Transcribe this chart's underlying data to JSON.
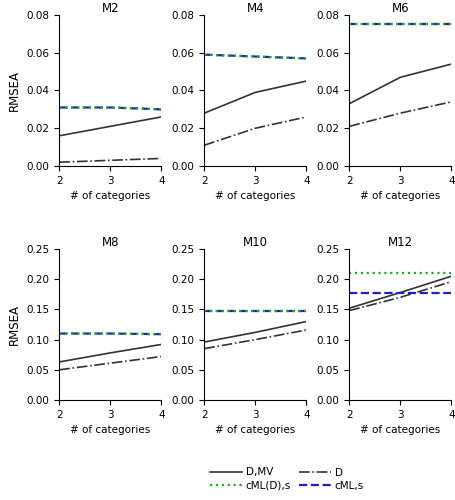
{
  "models": [
    "M2",
    "M4",
    "M6",
    "M8",
    "M10",
    "M12"
  ],
  "x": [
    2,
    3,
    4
  ],
  "upper_ylim": [
    0.0,
    0.08
  ],
  "lower_ylim": [
    0.0,
    0.25
  ],
  "upper_yticks": [
    0.0,
    0.02,
    0.04,
    0.06,
    0.08
  ],
  "lower_yticks": [
    0.0,
    0.05,
    0.1,
    0.15,
    0.2,
    0.25
  ],
  "plots": {
    "M2": {
      "D_MV": [
        0.016,
        0.021,
        0.026
      ],
      "D": [
        0.002,
        0.003,
        0.004
      ],
      "cML_s": [
        0.031,
        0.031,
        0.03
      ],
      "cML_D_s": [
        0.031,
        0.031,
        0.03
      ]
    },
    "M4": {
      "D_MV": [
        0.028,
        0.039,
        0.045
      ],
      "D": [
        0.011,
        0.02,
        0.026
      ],
      "cML_s": [
        0.059,
        0.058,
        0.057
      ],
      "cML_D_s": [
        0.059,
        0.058,
        0.057
      ]
    },
    "M6": {
      "D_MV": [
        0.033,
        0.047,
        0.054
      ],
      "D": [
        0.021,
        0.028,
        0.034
      ],
      "cML_s": [
        0.075,
        0.075,
        0.075
      ],
      "cML_D_s": [
        0.075,
        0.075,
        0.075
      ]
    },
    "M8": {
      "D_MV": [
        0.063,
        0.078,
        0.092
      ],
      "D": [
        0.05,
        0.061,
        0.072
      ],
      "cML_s": [
        0.11,
        0.11,
        0.109
      ],
      "cML_D_s": [
        0.11,
        0.11,
        0.109
      ]
    },
    "M10": {
      "D_MV": [
        0.096,
        0.112,
        0.13
      ],
      "D": [
        0.085,
        0.1,
        0.116
      ],
      "cML_s": [
        0.148,
        0.148,
        0.148
      ],
      "cML_D_s": [
        0.148,
        0.148,
        0.148
      ]
    },
    "M12": {
      "D_MV": [
        0.152,
        0.178,
        0.205
      ],
      "D": [
        0.148,
        0.17,
        0.196
      ],
      "cML_s": [
        0.178,
        0.178,
        0.178
      ],
      "cML_D_s": [
        0.21,
        0.21,
        0.21
      ]
    }
  },
  "colors": {
    "D_MV": "#333333",
    "D": "#333333",
    "cML_s": "#2222bb",
    "cML_D_s": "#22aa22"
  },
  "linestyles": {
    "D_MV": "solid",
    "D": "dashdot",
    "cML_s": "dashed",
    "cML_D_s": "dotted"
  },
  "linewidths": {
    "D_MV": 1.2,
    "D": 1.2,
    "cML_s": 1.6,
    "cML_D_s": 1.6
  },
  "legend_labels": {
    "D_MV": "D,MV",
    "D": "D",
    "cML_s": "cML,s",
    "cML_D_s": "cML(D),s"
  },
  "legend_order": [
    "D_MV",
    "cML_D_s",
    "D",
    "cML_s"
  ],
  "ylabel": "RMSEA",
  "xlabel": "# of categories"
}
